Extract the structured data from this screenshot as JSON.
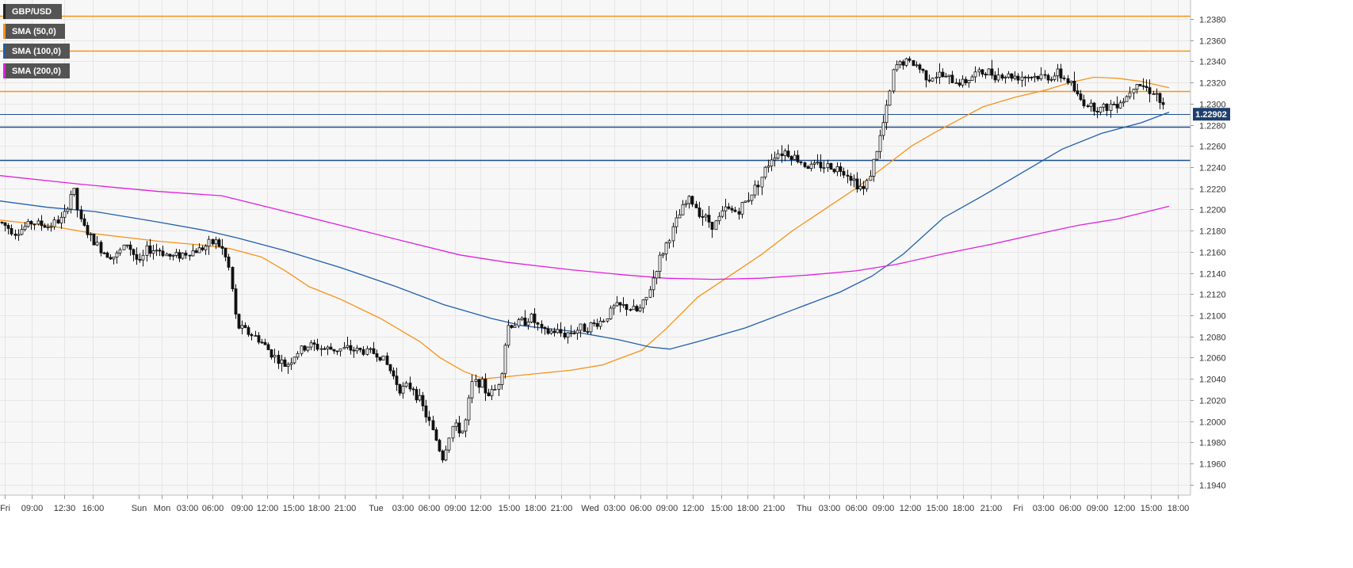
{
  "legend": {
    "symbol": "GBP/USD",
    "sma50": "SMA (50,0)",
    "sma100": "SMA (100,0)",
    "sma200": "SMA (200,0)"
  },
  "colors": {
    "symbol": "#222222",
    "sma50": "#f7931a",
    "sma100": "#1f5fad",
    "sma200": "#e020e0",
    "resistance": "#f7931a",
    "support": "#1f4e8c",
    "price_tag_bg": "#1f3f6e"
  },
  "current_price": "1.22902",
  "chart_data": {
    "type": "candlestick",
    "title": "",
    "xlabel": "",
    "ylabel": "",
    "ylim": [
      1.193,
      1.2395
    ],
    "grid": true,
    "legend_position": "top-left",
    "y_ticks": [
      1.194,
      1.196,
      1.198,
      1.2,
      1.202,
      1.204,
      1.206,
      1.208,
      1.21,
      1.212,
      1.214,
      1.216,
      1.218,
      1.22,
      1.222,
      1.224,
      1.226,
      1.228,
      1.23,
      1.232,
      1.234,
      1.236,
      1.238
    ],
    "x_ticks": [
      "Fri",
      "09:00",
      "12:30",
      "16:00",
      "Sun",
      "Mon",
      "03:00",
      "06:00",
      "09:00",
      "12:00",
      "15:00",
      "18:00",
      "21:00",
      "Tue",
      "03:00",
      "06:00",
      "09:00",
      "12:00",
      "15:00",
      "18:00",
      "21:00",
      "Wed",
      "03:00",
      "06:00",
      "09:00",
      "12:00",
      "15:00",
      "18:00",
      "21:00",
      "Thu",
      "03:00",
      "06:00",
      "09:00",
      "12:00",
      "15:00",
      "18:00",
      "21:00",
      "Fri",
      "03:00",
      "06:00",
      "09:00",
      "12:00",
      "15:00",
      "18:00"
    ],
    "horizontal_lines": [
      {
        "value": 1.2383,
        "kind": "resistance"
      },
      {
        "value": 1.235,
        "kind": "resistance"
      },
      {
        "value": 1.2312,
        "kind": "resistance"
      },
      {
        "value": 1.229,
        "kind": "current"
      },
      {
        "value": 1.2278,
        "kind": "support"
      },
      {
        "value": 1.2247,
        "kind": "support"
      }
    ],
    "price_anchors": [
      [
        0,
        1.2188
      ],
      [
        20,
        1.2178
      ],
      [
        40,
        1.2188
      ],
      [
        60,
        1.2184
      ],
      [
        80,
        1.2192
      ],
      [
        92,
        1.2222
      ],
      [
        100,
        1.219
      ],
      [
        115,
        1.2172
      ],
      [
        130,
        1.216
      ],
      [
        145,
        1.2155
      ],
      [
        160,
        1.2168
      ],
      [
        176,
        1.2148
      ],
      [
        185,
        1.2162
      ],
      [
        200,
        1.2162
      ],
      [
        215,
        1.2155
      ],
      [
        230,
        1.2158
      ],
      [
        250,
        1.2162
      ],
      [
        272,
        1.217
      ],
      [
        282,
        1.216
      ],
      [
        290,
        1.214
      ],
      [
        298,
        1.209
      ],
      [
        310,
        1.2085
      ],
      [
        325,
        1.2078
      ],
      [
        335,
        1.207
      ],
      [
        350,
        1.2058
      ],
      [
        360,
        1.2052
      ],
      [
        375,
        1.2065
      ],
      [
        390,
        1.2072
      ],
      [
        410,
        1.2068
      ],
      [
        440,
        1.2068
      ],
      [
        470,
        1.2065
      ],
      [
        480,
        1.2062
      ],
      [
        490,
        1.205
      ],
      [
        505,
        1.203
      ],
      [
        520,
        1.2033
      ],
      [
        535,
        1.201
      ],
      [
        550,
        1.1982
      ],
      [
        558,
        1.1965
      ],
      [
        570,
        1.1995
      ],
      [
        585,
        1.199
      ],
      [
        595,
        1.2035
      ],
      [
        605,
        1.2038
      ],
      [
        615,
        1.2025
      ],
      [
        625,
        1.203
      ],
      [
        632,
        1.2045
      ],
      [
        640,
        1.209
      ],
      [
        655,
        1.2093
      ],
      [
        670,
        1.2098
      ],
      [
        685,
        1.2083
      ],
      [
        700,
        1.2085
      ],
      [
        712,
        1.2082
      ],
      [
        730,
        1.2087
      ],
      [
        745,
        1.209
      ],
      [
        760,
        1.2095
      ],
      [
        775,
        1.2108
      ],
      [
        790,
        1.2108
      ],
      [
        805,
        1.2103
      ],
      [
        815,
        1.2115
      ],
      [
        830,
        1.215
      ],
      [
        845,
        1.2175
      ],
      [
        860,
        1.22
      ],
      [
        870,
        1.221
      ],
      [
        885,
        1.2195
      ],
      [
        900,
        1.2185
      ],
      [
        915,
        1.22
      ],
      [
        930,
        1.2198
      ],
      [
        945,
        1.2212
      ],
      [
        960,
        1.223
      ],
      [
        975,
        1.2252
      ],
      [
        990,
        1.2255
      ],
      [
        1005,
        1.2248
      ],
      [
        1020,
        1.224
      ],
      [
        1035,
        1.2242
      ],
      [
        1050,
        1.224
      ],
      [
        1065,
        1.2237
      ],
      [
        1080,
        1.2225
      ],
      [
        1090,
        1.2218
      ],
      [
        1100,
        1.224
      ],
      [
        1110,
        1.2268
      ],
      [
        1120,
        1.23
      ],
      [
        1128,
        1.2335
      ],
      [
        1140,
        1.234
      ],
      [
        1155,
        1.2337
      ],
      [
        1170,
        1.2325
      ],
      [
        1185,
        1.2327
      ],
      [
        1200,
        1.2322
      ],
      [
        1215,
        1.232
      ],
      [
        1230,
        1.2328
      ],
      [
        1245,
        1.233
      ],
      [
        1260,
        1.2327
      ],
      [
        1280,
        1.2326
      ],
      [
        1300,
        1.2326
      ],
      [
        1320,
        1.2325
      ],
      [
        1335,
        1.2328
      ],
      [
        1350,
        1.232
      ],
      [
        1360,
        1.2305
      ],
      [
        1375,
        1.2298
      ],
      [
        1390,
        1.2295
      ],
      [
        1405,
        1.23
      ],
      [
        1420,
        1.2305
      ],
      [
        1432,
        1.2322
      ],
      [
        1445,
        1.2315
      ],
      [
        1458,
        1.231
      ],
      [
        1470,
        1.229
      ]
    ],
    "series": [
      {
        "name": "SMA (50,0)",
        "points": [
          [
            0,
            1.219
          ],
          [
            60,
            1.2185
          ],
          [
            120,
            1.2177
          ],
          [
            200,
            1.217
          ],
          [
            260,
            1.2166
          ],
          [
            290,
            1.2163
          ],
          [
            330,
            1.2155
          ],
          [
            360,
            1.2142
          ],
          [
            390,
            1.2127
          ],
          [
            430,
            1.2115
          ],
          [
            480,
            1.2097
          ],
          [
            530,
            1.2075
          ],
          [
            555,
            1.206
          ],
          [
            585,
            1.2047
          ],
          [
            610,
            1.204
          ],
          [
            640,
            1.2042
          ],
          [
            680,
            1.2045
          ],
          [
            720,
            1.2048
          ],
          [
            760,
            1.2053
          ],
          [
            810,
            1.2067
          ],
          [
            840,
            1.2087
          ],
          [
            880,
            1.2117
          ],
          [
            920,
            1.2137
          ],
          [
            960,
            1.2157
          ],
          [
            1000,
            1.218
          ],
          [
            1040,
            1.22
          ],
          [
            1080,
            1.222
          ],
          [
            1110,
            1.2237
          ],
          [
            1150,
            1.226
          ],
          [
            1180,
            1.2273
          ],
          [
            1210,
            1.2285
          ],
          [
            1240,
            1.2297
          ],
          [
            1280,
            1.2306
          ],
          [
            1320,
            1.2313
          ],
          [
            1350,
            1.232
          ],
          [
            1380,
            1.2325
          ],
          [
            1410,
            1.2324
          ],
          [
            1440,
            1.2321
          ],
          [
            1475,
            1.2315
          ]
        ]
      },
      {
        "name": "SMA (100,0)",
        "points": [
          [
            0,
            1.2208
          ],
          [
            60,
            1.2202
          ],
          [
            120,
            1.2198
          ],
          [
            200,
            1.2188
          ],
          [
            260,
            1.218
          ],
          [
            300,
            1.2173
          ],
          [
            360,
            1.2161
          ],
          [
            430,
            1.2145
          ],
          [
            500,
            1.2127
          ],
          [
            560,
            1.211
          ],
          [
            620,
            1.2097
          ],
          [
            660,
            1.209
          ],
          [
            720,
            1.2085
          ],
          [
            780,
            1.2077
          ],
          [
            820,
            1.207
          ],
          [
            845,
            1.2068
          ],
          [
            880,
            1.2075
          ],
          [
            940,
            1.2088
          ],
          [
            1000,
            1.2105
          ],
          [
            1060,
            1.2122
          ],
          [
            1100,
            1.2137
          ],
          [
            1140,
            1.2158
          ],
          [
            1190,
            1.2192
          ],
          [
            1240,
            1.2213
          ],
          [
            1290,
            1.2235
          ],
          [
            1340,
            1.2257
          ],
          [
            1390,
            1.2272
          ],
          [
            1440,
            1.2282
          ],
          [
            1475,
            1.2292
          ]
        ]
      },
      {
        "name": "SMA (200,0)",
        "points": [
          [
            0,
            1.2232
          ],
          [
            100,
            1.2224
          ],
          [
            200,
            1.2217
          ],
          [
            280,
            1.2213
          ],
          [
            350,
            1.22
          ],
          [
            430,
            1.2185
          ],
          [
            510,
            1.217
          ],
          [
            580,
            1.2157
          ],
          [
            640,
            1.215
          ],
          [
            720,
            1.2143
          ],
          [
            790,
            1.2138
          ],
          [
            840,
            1.2135
          ],
          [
            900,
            1.2134
          ],
          [
            960,
            1.2135
          ],
          [
            1020,
            1.2138
          ],
          [
            1080,
            1.2142
          ],
          [
            1130,
            1.2148
          ],
          [
            1190,
            1.2158
          ],
          [
            1250,
            1.2167
          ],
          [
            1310,
            1.2177
          ],
          [
            1360,
            1.2185
          ],
          [
            1410,
            1.2191
          ],
          [
            1475,
            1.2203
          ]
        ]
      }
    ]
  }
}
